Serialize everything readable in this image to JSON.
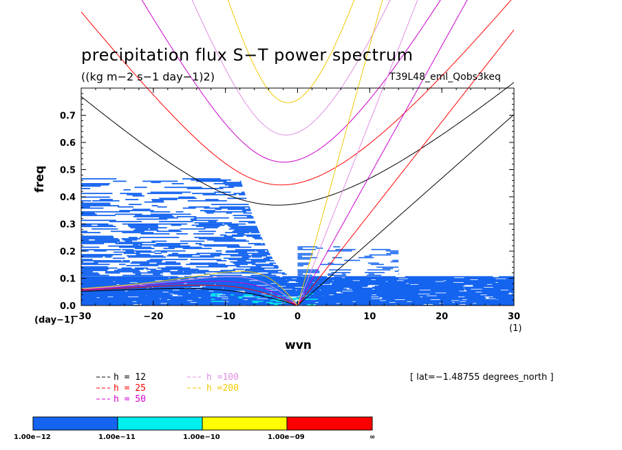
{
  "chart_data": {
    "type": "heatmap",
    "title": "precipitation flux S−T power spectrum",
    "subtitle": "((kg m−2 s−1 day−1)2)",
    "run_label": "T39L48_eml_Qobs3keq",
    "xlabel": "wvn",
    "ylabel": "freq",
    "x_unit_left": "(day−1)",
    "x_unit_right": "(1)",
    "xlim": [
      -30,
      30
    ],
    "ylim": [
      0,
      0.8
    ],
    "x_ticks": [
      -30,
      -20,
      -10,
      0,
      10,
      20,
      30
    ],
    "x_tick_labels": [
      "−30",
      "−20",
      "−10",
      "0",
      "10",
      "20",
      "30"
    ],
    "y_ticks": [
      0,
      0.1,
      0.2,
      0.3,
      0.4,
      0.5,
      0.6,
      0.7
    ],
    "y_tick_labels": [
      "0.0",
      "0.1",
      "0.2",
      "0.3",
      "0.4",
      "0.5",
      "0.6",
      "0.7"
    ],
    "lat_info": "[ lat=−1.48755 degrees_north ]",
    "dispersion_legend": [
      {
        "label": "h = 12",
        "color": "#000000"
      },
      {
        "label": "h = 25",
        "color": "#ff0000"
      },
      {
        "label": "h = 50",
        "color": "#cc00cc"
      },
      {
        "label": "h =100",
        "color": "#e08ce0"
      },
      {
        "label": "h =200",
        "color": "#f0c800"
      }
    ],
    "colorbar": {
      "levels": [
        "1.00e−12",
        "1.00e−11",
        "1.00e−10",
        "1.00e−09",
        "∞"
      ],
      "colors": [
        "#1464f0",
        "#00f0f0",
        "#ffff00",
        "#ff0000"
      ]
    },
    "shaded_regions": [
      {
        "level": "1.00e−12 to 1.00e−11",
        "x_range": [
          -30,
          30
        ],
        "y_range": [
          0,
          0.11
        ],
        "note": "broad band across all wavenumbers"
      },
      {
        "level": "1.00e−12 to 1.00e−11",
        "x_range": [
          -30,
          -1
        ],
        "y_range": [
          0,
          0.5
        ]
      },
      {
        "level": "1.00e−11 to 1.00e−10",
        "x_range": [
          -12,
          3
        ],
        "y_range": [
          0,
          0.05
        ]
      }
    ],
    "dispersion_curves": {
      "equivalent_depths_m": [
        12,
        25,
        50,
        100,
        200
      ],
      "families": [
        "Kelvin (eastward, through origin)",
        "inertio-gravity n=1 (U-shaped)",
        "equatorial Rossby (low frequency, westward)"
      ]
    }
  }
}
